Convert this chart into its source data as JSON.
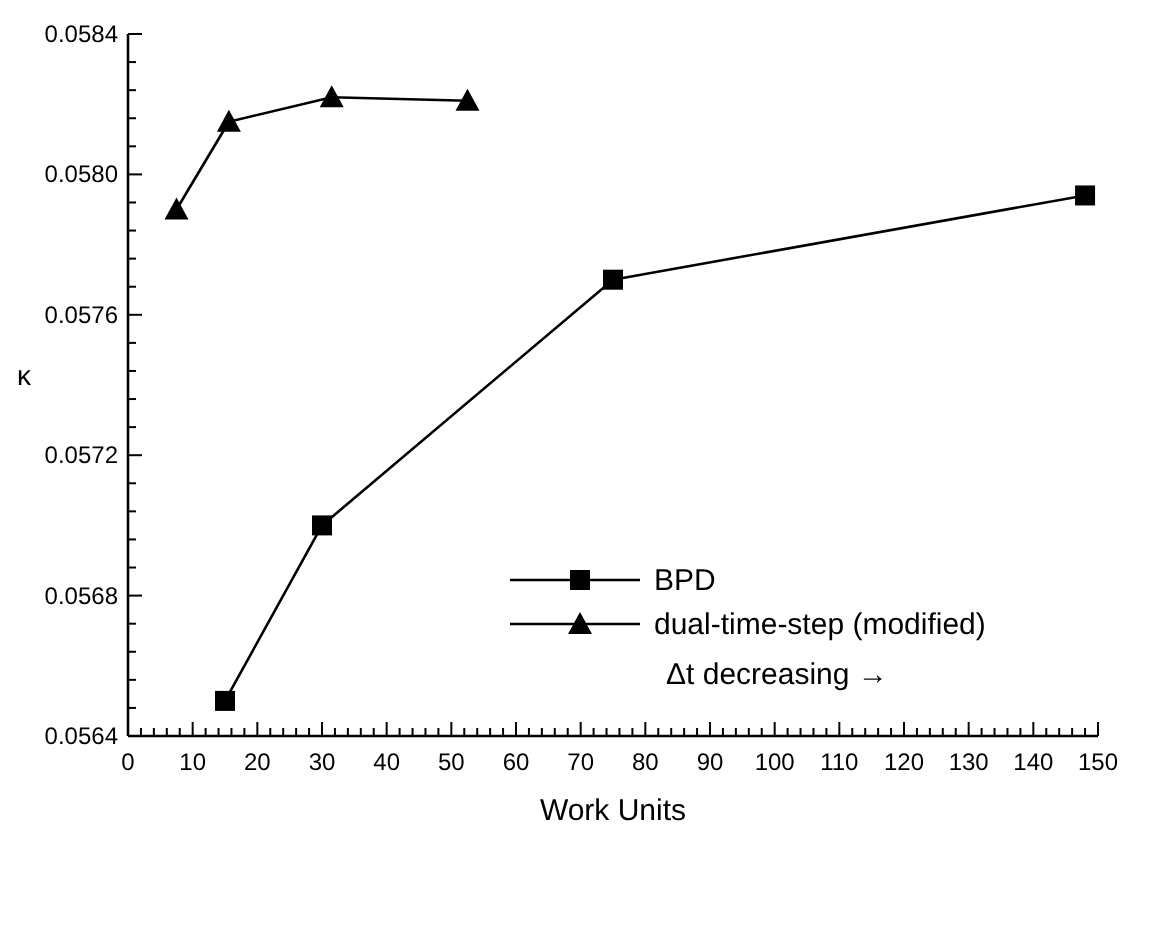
{
  "chart_data": {
    "type": "line",
    "xlabel": "Work Units",
    "ylabel": "κ",
    "annotations": [
      "Δt decreasing →"
    ],
    "legend": "right",
    "grid": false,
    "line_style": "solid",
    "xlim": [
      0,
      150
    ],
    "ylim": [
      0.0564,
      0.0584
    ],
    "xticks": [
      0,
      {
        "value": 2,
        "label": null
      },
      {
        "value": 4,
        "label": null
      },
      {
        "value": 6,
        "label": null
      },
      {
        "value": 8,
        "label": null
      },
      10,
      {
        "value": 12,
        "label": null
      },
      {
        "value": 14,
        "label": null
      },
      {
        "value": 16,
        "label": null
      },
      {
        "value": 18,
        "label": null
      },
      20,
      {
        "value": 22,
        "label": null
      },
      {
        "value": 24,
        "label": null
      },
      {
        "value": 26,
        "label": null
      },
      {
        "value": 28,
        "label": null
      },
      30,
      {
        "value": 32,
        "label": null
      },
      {
        "value": 34,
        "label": null
      },
      {
        "value": 36,
        "label": null
      },
      {
        "value": 38,
        "label": null
      },
      40,
      {
        "value": 42,
        "label": null
      },
      {
        "value": 44,
        "label": null
      },
      {
        "value": 46,
        "label": null
      },
      {
        "value": 48,
        "label": null
      },
      50,
      {
        "value": 52,
        "label": null
      },
      {
        "value": 54,
        "label": null
      },
      {
        "value": 56,
        "label": null
      },
      {
        "value": 58,
        "label": null
      },
      60,
      {
        "value": 62,
        "label": null
      },
      {
        "value": 64,
        "label": null
      },
      {
        "value": 66,
        "label": null
      },
      {
        "value": 68,
        "label": null
      },
      70,
      {
        "value": 72,
        "label": null
      },
      {
        "value": 74,
        "label": null
      },
      {
        "value": 76,
        "label": null
      },
      {
        "value": 78,
        "label": null
      },
      80,
      {
        "value": 82,
        "label": null
      },
      {
        "value": 84,
        "label": null
      },
      {
        "value": 86,
        "label": null
      },
      {
        "value": 88,
        "label": null
      },
      90,
      {
        "value": 92,
        "label": null
      },
      {
        "value": 94,
        "label": null
      },
      {
        "value": 96,
        "label": null
      },
      {
        "value": 98,
        "label": null
      },
      100,
      {
        "value": 102,
        "label": null
      },
      {
        "value": 104,
        "label": null
      },
      {
        "value": 106,
        "label": null
      },
      {
        "value": 108,
        "label": null
      },
      110,
      {
        "value": 112,
        "label": null
      },
      {
        "value": 114,
        "label": null
      },
      {
        "value": 116,
        "label": null
      },
      {
        "value": 118,
        "label": null
      },
      120,
      {
        "value": 122,
        "label": null
      },
      {
        "value": 124,
        "label": null
      },
      {
        "value": 126,
        "label": null
      },
      {
        "value": 128,
        "label": null
      },
      130,
      {
        "value": 132,
        "label": null
      },
      {
        "value": 134,
        "label": null
      },
      {
        "value": 136,
        "label": null
      },
      {
        "value": 138,
        "label": null
      },
      140,
      {
        "value": 142,
        "label": null
      },
      {
        "value": 144,
        "label": null
      },
      {
        "value": 146,
        "label": null
      },
      {
        "value": 148,
        "label": null
      },
      150
    ],
    "yticks": [
      {
        "value": 0.0564,
        "label": "0.0564"
      },
      {
        "value": 0.05648,
        "label": null
      },
      {
        "value": 0.05656,
        "label": null
      },
      {
        "value": 0.05664,
        "label": null
      },
      {
        "value": 0.05672,
        "label": null
      },
      {
        "value": 0.0568,
        "label": "0.0568"
      },
      {
        "value": 0.05688,
        "label": null
      },
      {
        "value": 0.05696,
        "label": null
      },
      {
        "value": 0.05704,
        "label": null
      },
      {
        "value": 0.05712,
        "label": null
      },
      {
        "value": 0.0572,
        "label": "0.0572"
      },
      {
        "value": 0.05728,
        "label": null
      },
      {
        "value": 0.05736,
        "label": null
      },
      {
        "value": 0.05744,
        "label": null
      },
      {
        "value": 0.05752,
        "label": null
      },
      {
        "value": 0.0576,
        "label": "0.0576"
      },
      {
        "value": 0.05768,
        "label": null
      },
      {
        "value": 0.05776,
        "label": null
      },
      {
        "value": 0.05784,
        "label": null
      },
      {
        "value": 0.05792,
        "label": null
      },
      {
        "value": 0.058,
        "label": "0.0580"
      },
      {
        "value": 0.05808,
        "label": null
      },
      {
        "value": 0.05816,
        "label": null
      },
      {
        "value": 0.05824,
        "label": null
      },
      {
        "value": 0.05832,
        "label": null
      },
      {
        "value": 0.0584,
        "label": "0.0584"
      }
    ],
    "series": [
      {
        "name": "BPD",
        "color": "#000000",
        "marker": "square",
        "x": [
          15,
          30,
          75,
          148
        ],
        "values": [
          0.0565,
          0.057,
          0.0577,
          0.05794
        ]
      },
      {
        "name": "dual-time-step (modified)",
        "color": "#000000",
        "marker": "triangle",
        "x": [
          7.5,
          15.6,
          31.5,
          52.5
        ],
        "values": [
          0.0579,
          0.05815,
          0.05822,
          0.05821
        ]
      }
    ]
  }
}
